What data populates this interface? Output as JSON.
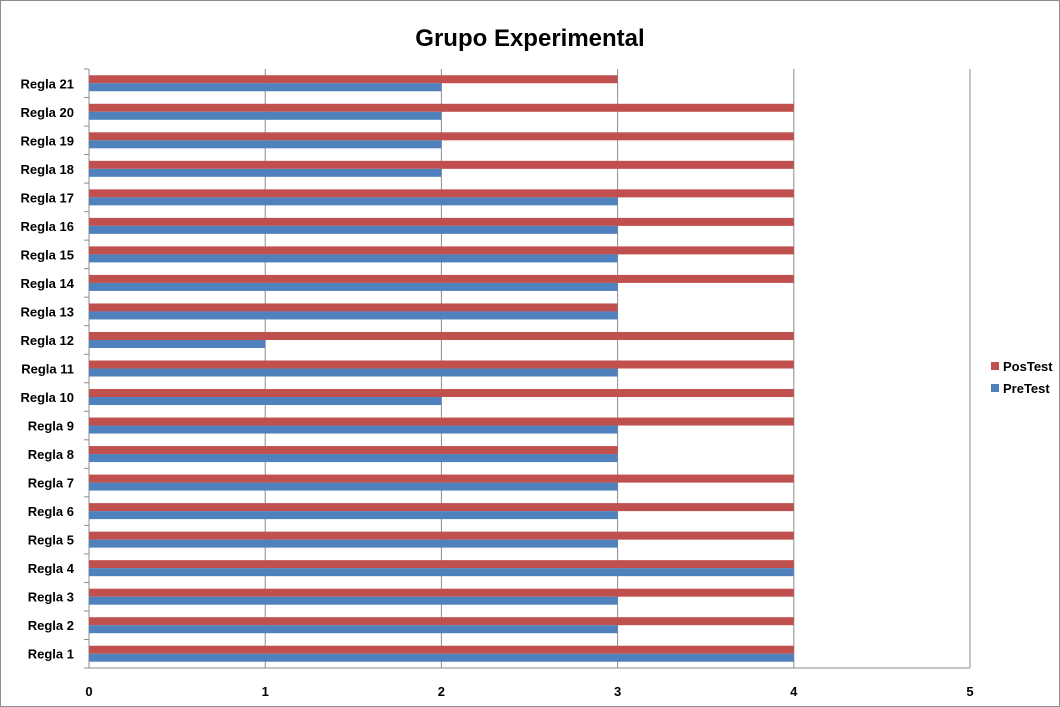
{
  "chart_data": {
    "type": "bar",
    "orientation": "horizontal",
    "title": "Grupo Experimental",
    "xlabel": "",
    "ylabel": "",
    "xlim": [
      0,
      5
    ],
    "x_ticks": [
      "0",
      "1",
      "2",
      "3",
      "4",
      "5"
    ],
    "grid": true,
    "legend_position": "right",
    "categories": [
      "Regla 1",
      "Regla 2",
      "Regla 3",
      "Regla 4",
      "Regla 5",
      "Regla 6",
      "Regla 7",
      "Regla 8",
      "Regla 9",
      "Regla 10",
      "Regla 11",
      "Regla 12",
      "Regla 13",
      "Regla 14",
      "Regla 15",
      "Regla 16",
      "Regla 17",
      "Regla 18",
      "Regla 19",
      "Regla 20",
      "Regla 21"
    ],
    "series": [
      {
        "name": "PreTest",
        "color": "#4f81bd",
        "values": [
          4,
          3,
          3,
          4,
          3,
          3,
          3,
          3,
          3,
          2,
          3,
          1,
          3,
          3,
          3,
          3,
          3,
          2,
          2,
          2,
          2
        ]
      },
      {
        "name": "PosTest",
        "color": "#c0504d",
        "values": [
          4,
          4,
          4,
          4,
          4,
          4,
          4,
          3,
          4,
          4,
          4,
          4,
          3,
          4,
          4,
          4,
          4,
          4,
          4,
          4,
          3
        ]
      }
    ],
    "legend_order": [
      "PosTest",
      "PreTest"
    ]
  }
}
